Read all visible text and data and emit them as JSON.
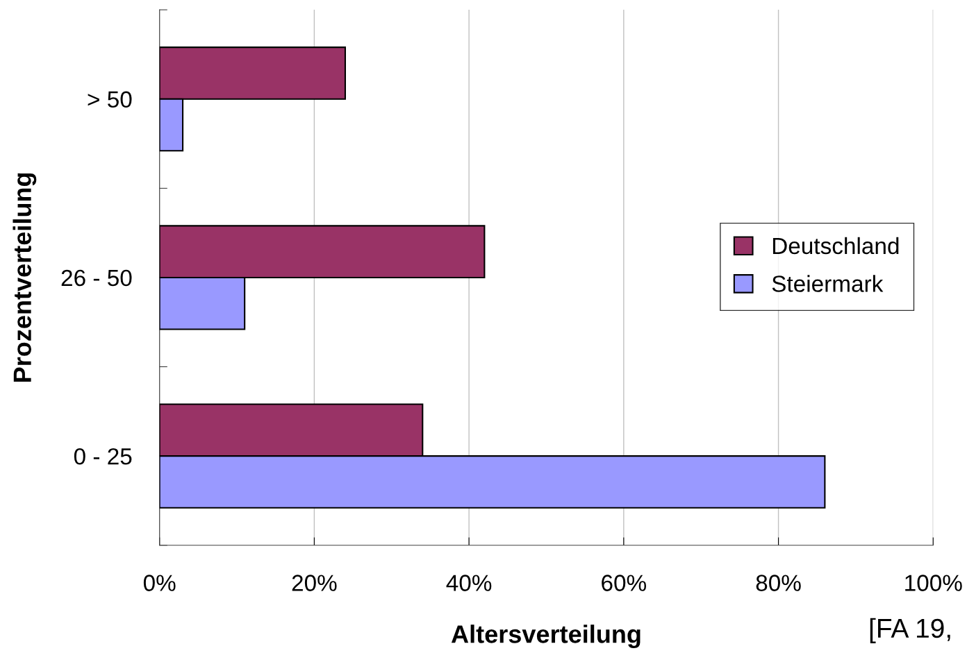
{
  "chart_data": {
    "type": "bar",
    "orientation": "horizontal",
    "categories": [
      "> 50",
      "26 - 50",
      "0 - 25"
    ],
    "series": [
      {
        "name": "Deutschland",
        "color": "#993366",
        "values": [
          24,
          42,
          34
        ]
      },
      {
        "name": "Steiermark",
        "color": "#9999ff",
        "values": [
          3,
          11,
          86
        ]
      }
    ],
    "xlim": [
      0,
      100
    ],
    "xticks": [
      {
        "value": 0,
        "label": "0%"
      },
      {
        "value": 20,
        "label": "20%"
      },
      {
        "value": 40,
        "label": "40%"
      },
      {
        "value": 60,
        "label": "60%"
      },
      {
        "value": 80,
        "label": "80%"
      },
      {
        "value": 100,
        "label": "100%"
      }
    ],
    "xlabel": "Altersverteilung",
    "ylabel": "Prozentverteilung",
    "grid": "x",
    "legend": "right",
    "annotations": [
      "[FA 19,"
    ]
  }
}
